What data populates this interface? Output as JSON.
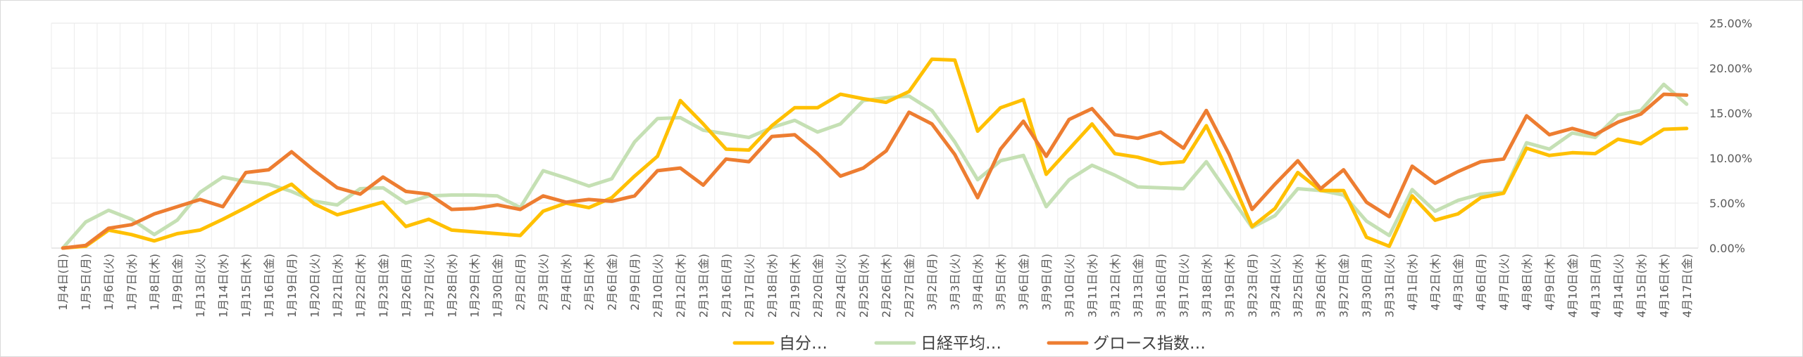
{
  "chart_data": {
    "type": "line",
    "title": "",
    "xlabel": "",
    "ylabel": "",
    "ylim": [
      0,
      25
    ],
    "yticks": [
      0,
      5,
      10,
      15,
      20,
      25
    ],
    "ytick_labels": [
      "0.00%",
      "5.00%",
      "10.00%",
      "15.00%",
      "20.00%",
      "25.00%"
    ],
    "grid": true,
    "legend_position": "bottom",
    "categories": [
      "1月4日(日)",
      "1月5日(月)",
      "1月6日(火)",
      "1月7日(水)",
      "1月8日(木)",
      "1月9日(金)",
      "1月13日(火)",
      "1月14日(水)",
      "1月15日(木)",
      "1月16日(金)",
      "1月19日(月)",
      "1月20日(火)",
      "1月21日(水)",
      "1月22日(木)",
      "1月23日(金)",
      "1月26日(月)",
      "1月27日(火)",
      "1月28日(水)",
      "1月29日(木)",
      "1月30日(金)",
      "2月2日(月)",
      "2月3日(火)",
      "2月4日(水)",
      "2月5日(木)",
      "2月6日(金)",
      "2月9日(月)",
      "2月10日(火)",
      "2月12日(木)",
      "2月13日(金)",
      "2月16日(月)",
      "2月17日(火)",
      "2月18日(水)",
      "2月19日(木)",
      "2月20日(金)",
      "2月24日(火)",
      "2月25日(水)",
      "2月26日(木)",
      "2月27日(金)",
      "3月2日(月)",
      "3月3日(火)",
      "3月4日(水)",
      "3月5日(木)",
      "3月6日(金)",
      "3月9日(月)",
      "3月10日(火)",
      "3月11日(水)",
      "3月12日(木)",
      "3月13日(金)",
      "3月16日(月)",
      "3月17日(火)",
      "3月18日(水)",
      "3月19日(木)",
      "3月23日(月)",
      "3月24日(火)",
      "3月25日(水)",
      "3月26日(木)",
      "3月27日(金)",
      "3月30日(月)",
      "3月31日(火)",
      "4月1日(水)",
      "4月2日(木)",
      "4月3日(金)",
      "4月6日(月)",
      "4月7日(火)",
      "4月8日(水)",
      "4月9日(木)",
      "4月10日(金)",
      "4月13日(月)",
      "4月14日(火)",
      "4月15日(水)",
      "4月16日(木)",
      "4月17日(金)"
    ],
    "series": [
      {
        "name": "自分…",
        "color": "#FFC000",
        "values": [
          0,
          0.2,
          2.0,
          1.5,
          0.8,
          1.6,
          2.0,
          3.2,
          4.5,
          5.9,
          7.1,
          4.9,
          3.7,
          4.4,
          5.1,
          2.4,
          3.2,
          2.0,
          1.8,
          1.6,
          1.4,
          4.1,
          5.0,
          4.5,
          5.6,
          8.0,
          10.2,
          16.4,
          13.8,
          11.0,
          10.9,
          13.6,
          15.6,
          15.6,
          17.1,
          16.6,
          16.2,
          17.4,
          21.0,
          20.9,
          13.0,
          15.6,
          16.5,
          8.2,
          11.0,
          13.8,
          10.5,
          10.1,
          9.4,
          9.6,
          13.6,
          8.2,
          2.4,
          4.4,
          8.4,
          6.4,
          6.4,
          1.2,
          0.2,
          5.8,
          3.1,
          3.8,
          5.6,
          6.1,
          11.1,
          10.3,
          10.6,
          10.5,
          12.1,
          11.6,
          13.2,
          13.3
        ]
      },
      {
        "name": "日経平均…",
        "color": "#C5E0B4",
        "values": [
          0,
          2.9,
          4.2,
          3.2,
          1.5,
          3.1,
          6.2,
          7.9,
          7.4,
          7.1,
          6.3,
          5.2,
          4.8,
          6.6,
          6.7,
          5.0,
          5.8,
          5.9,
          5.9,
          5.8,
          4.5,
          8.6,
          7.8,
          6.9,
          7.7,
          11.8,
          14.4,
          14.5,
          13.1,
          12.7,
          12.3,
          13.4,
          14.2,
          12.9,
          13.8,
          16.4,
          16.7,
          16.9,
          15.3,
          11.8,
          7.6,
          9.7,
          10.3,
          4.6,
          7.6,
          9.2,
          8.1,
          6.8,
          6.7,
          6.6,
          9.6,
          5.9,
          2.3,
          3.6,
          6.6,
          6.4,
          5.9,
          3.0,
          1.4,
          6.5,
          4.1,
          5.3,
          6.0,
          6.2,
          11.7,
          11.0,
          12.8,
          12.3,
          14.8,
          15.3,
          18.2,
          16.0
        ]
      },
      {
        "name": "グロース指数…",
        "color": "#ED7D31",
        "values": [
          0,
          0.3,
          2.2,
          2.6,
          3.8,
          4.6,
          5.4,
          4.6,
          8.4,
          8.7,
          10.7,
          8.6,
          6.7,
          6.0,
          7.9,
          6.3,
          6.0,
          4.3,
          4.4,
          4.8,
          4.3,
          5.8,
          5.1,
          5.4,
          5.2,
          5.8,
          8.6,
          8.9,
          7.0,
          9.9,
          9.6,
          12.4,
          12.6,
          10.5,
          8.0,
          8.9,
          10.8,
          15.1,
          13.8,
          10.4,
          5.6,
          11.0,
          14.1,
          10.2,
          14.3,
          15.5,
          12.6,
          12.2,
          12.9,
          11.1,
          15.3,
          10.4,
          4.3,
          7.1,
          9.7,
          6.6,
          8.7,
          5.1,
          3.5,
          9.1,
          7.2,
          8.5,
          9.6,
          9.9,
          14.7,
          12.6,
          13.3,
          12.6,
          14.0,
          14.9,
          17.1,
          17.0
        ]
      }
    ]
  }
}
